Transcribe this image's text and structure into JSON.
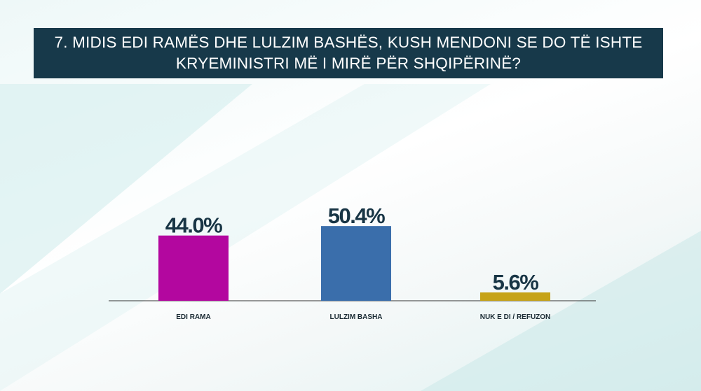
{
  "chart_data": {
    "type": "bar",
    "title": "7. MIDIS EDI RAMËS DHE LULZIM BASHËS, KUSH MENDONI SE DO TË ISHTE KRYEMINISTRI MË I MIRË PËR SHQIPËRINË?",
    "categories": [
      "EDI RAMA",
      "LULZIM BASHA",
      "NUK E DI / REFUZON"
    ],
    "values": [
      44.0,
      50.4,
      5.6
    ],
    "value_labels": [
      "44.0%",
      "50.4%",
      "5.6%"
    ],
    "colors": [
      "#b3079f",
      "#3a6eab",
      "#c6a318"
    ]
  }
}
